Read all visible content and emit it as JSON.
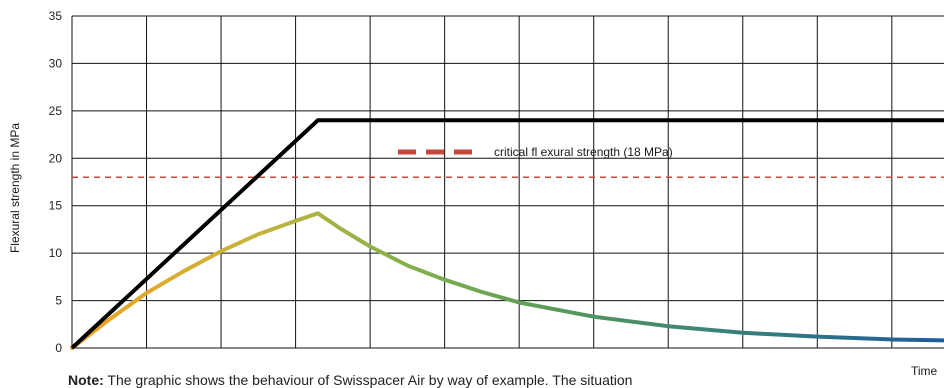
{
  "ylabel": "Flexural strength in MPa",
  "xlabel": "Time",
  "note": {
    "prefix": "Note:",
    "text": "The graphic shows the behaviour of Swisspacer Air by way of example. The situation"
  },
  "annotation": "critical fl exural strength (18 MPa)",
  "colors": {
    "grid": "#111111",
    "black_line": "#000000",
    "critical": "#c8473b",
    "gradient": [
      "#f0a01e",
      "#c9b43a",
      "#7fb04d",
      "#4f9460",
      "#327a82",
      "#1f5c9c"
    ]
  },
  "chart_data": {
    "type": "line",
    "title": "",
    "xlabel": "Time",
    "ylabel": "Flexural strength in MPa",
    "ylim": [
      0,
      35
    ],
    "xlim": [
      0,
      11.7
    ],
    "yticks": [
      0,
      5,
      10,
      15,
      20,
      25,
      30,
      35
    ],
    "grid": true,
    "series": [
      {
        "values": [
          [
            0,
            0
          ],
          [
            3.3,
            24
          ],
          [
            11.7,
            24
          ]
        ]
      },
      {
        "values": [
          [
            0,
            0
          ],
          [
            0.5,
            3.0
          ],
          [
            1,
            5.8
          ],
          [
            1.5,
            8.1
          ],
          [
            2,
            10.2
          ],
          [
            2.5,
            12.0
          ],
          [
            3,
            13.4
          ],
          [
            3.3,
            14.2
          ],
          [
            3.6,
            12.6
          ],
          [
            4,
            10.7
          ],
          [
            4.5,
            8.7
          ],
          [
            5,
            7.2
          ],
          [
            5.5,
            5.9
          ],
          [
            6,
            4.8
          ],
          [
            7,
            3.3
          ],
          [
            8,
            2.3
          ],
          [
            9,
            1.6
          ],
          [
            10,
            1.2
          ],
          [
            11,
            0.9
          ],
          [
            11.7,
            0.8
          ]
        ]
      }
    ],
    "reference_line": {
      "y": 18,
      "style": "dashed",
      "label": "critical fl exural strength (18 MPa)"
    }
  }
}
